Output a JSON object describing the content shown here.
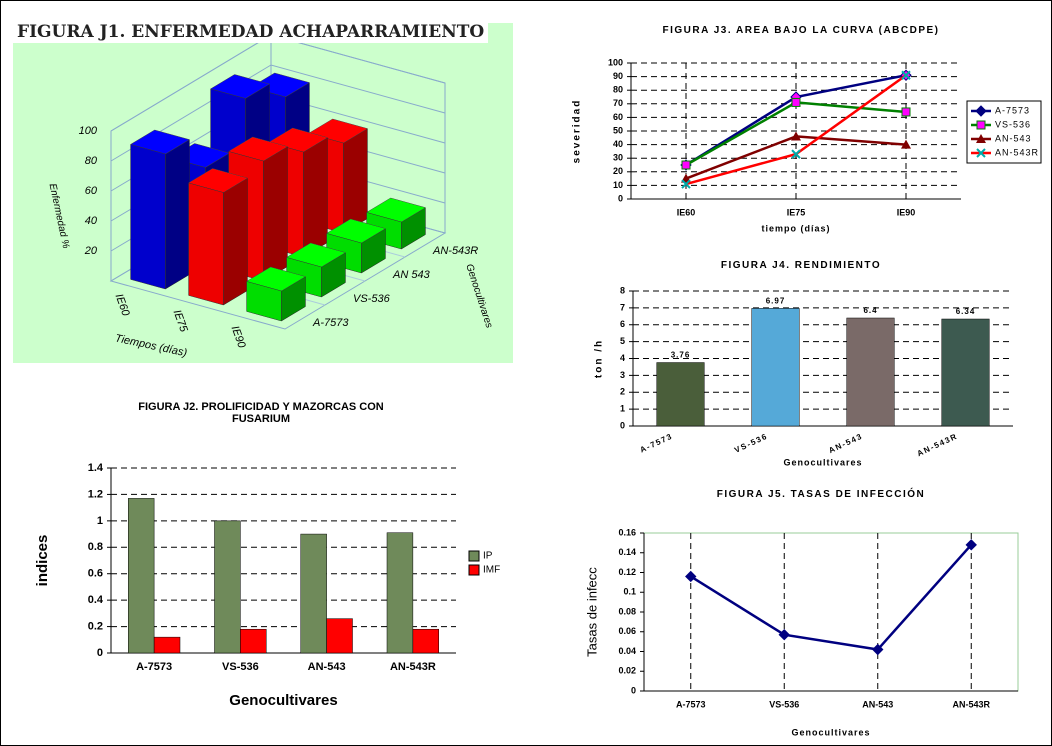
{
  "chart_data": [
    {
      "type": "bar3d",
      "title": "FIGURA J1. ENFERMEDAD ACHAPARRAMIENTO",
      "ylabel": "Enfermedad %",
      "xlabel": "Tiempos (días)",
      "zlabel": "Genocultivares",
      "categories": [
        "A-7573",
        "VS-536",
        "AN 543",
        "AN-543R"
      ],
      "series": [
        {
          "name": "IE60",
          "color": "#0000cc",
          "values": [
            90,
            65,
            95,
            80
          ]
        },
        {
          "name": "IE75",
          "color": "#ee0000",
          "values": [
            75,
            80,
            70,
            60
          ]
        },
        {
          "name": "IE90",
          "color": "#00dd00",
          "values": [
            20,
            20,
            20,
            18
          ]
        }
      ],
      "ylim": [
        0,
        100
      ],
      "yticks": [
        20,
        40,
        60,
        80,
        100
      ],
      "background": "#ccffcc"
    },
    {
      "type": "bar",
      "title": "FIGURA J2.  PROLIFICIDAD Y MAZORCAS CON FUSARIUM",
      "ylabel": "indices",
      "xlabel": "Genocultivares",
      "categories": [
        "A-7573",
        "VS-536",
        "AN-543",
        "AN-543R"
      ],
      "series": [
        {
          "name": "IP",
          "color": "#6f8a5a",
          "values": [
            1.17,
            1.0,
            0.9,
            0.91
          ]
        },
        {
          "name": "IMF",
          "color": "#ff0000",
          "values": [
            0.12,
            0.18,
            0.26,
            0.18
          ]
        }
      ],
      "ylim": [
        0,
        1.4
      ],
      "yticks": [
        0,
        0.2,
        0.4,
        0.6,
        0.8,
        1,
        1.2,
        1.4
      ],
      "grid": "y",
      "legend": "right"
    },
    {
      "type": "line",
      "title": "FIGURA J3. AREA BAJO LA CURVA (ABCDPE)",
      "ylabel": "severidad",
      "xlabel": "tiempo (días)",
      "categories": [
        "IE60",
        "IE75",
        "IE90"
      ],
      "series": [
        {
          "name": "A-7573",
          "color": "#000080",
          "marker": "diamond",
          "values": [
            25,
            75,
            91
          ]
        },
        {
          "name": "VS-536",
          "color": "#008000",
          "marker": "square",
          "values": [
            25,
            71,
            64
          ]
        },
        {
          "name": "AN-543",
          "color": "#800000",
          "marker": "triangle",
          "values": [
            15,
            46,
            40
          ]
        },
        {
          "name": "AN-543R",
          "color": "#ff0000",
          "marker": "x",
          "values": [
            11,
            33,
            91
          ]
        }
      ],
      "ylim": [
        0,
        100
      ],
      "yticks": [
        0,
        10,
        20,
        30,
        40,
        50,
        60,
        70,
        80,
        90,
        100
      ],
      "grid": "both",
      "legend": "right"
    },
    {
      "type": "bar",
      "title": "FIGURA J4. RENDIMIENTO",
      "ylabel": "ton /h",
      "xlabel": "Genocultivares",
      "categories": [
        "A-7573",
        "VS-536",
        "AN-543",
        "AN-543R"
      ],
      "values": [
        3.76,
        6.97,
        6.4,
        6.34
      ],
      "colors": [
        "#4a5e3a",
        "#55a9d8",
        "#7a6a68",
        "#3d5a50"
      ],
      "ylim": [
        0,
        8
      ],
      "yticks": [
        0,
        1,
        2,
        3,
        4,
        5,
        6,
        7,
        8
      ],
      "grid": "y"
    },
    {
      "type": "line",
      "title": "FIGURA J5. TASAS DE INFECCIÓN",
      "ylabel": "Tasas de infecc",
      "xlabel": "Genocultivares",
      "categories": [
        "A-7573",
        "VS-536",
        "AN-543",
        "AN-543R"
      ],
      "series": [
        {
          "color": "#000080",
          "marker": "diamond",
          "values": [
            0.116,
            0.057,
            0.042,
            0.148
          ]
        }
      ],
      "ylim": [
        0,
        0.16
      ],
      "yticks": [
        0,
        0.02,
        0.04,
        0.06,
        0.08,
        0.1,
        0.12,
        0.14,
        0.16
      ],
      "grid": "x"
    }
  ]
}
